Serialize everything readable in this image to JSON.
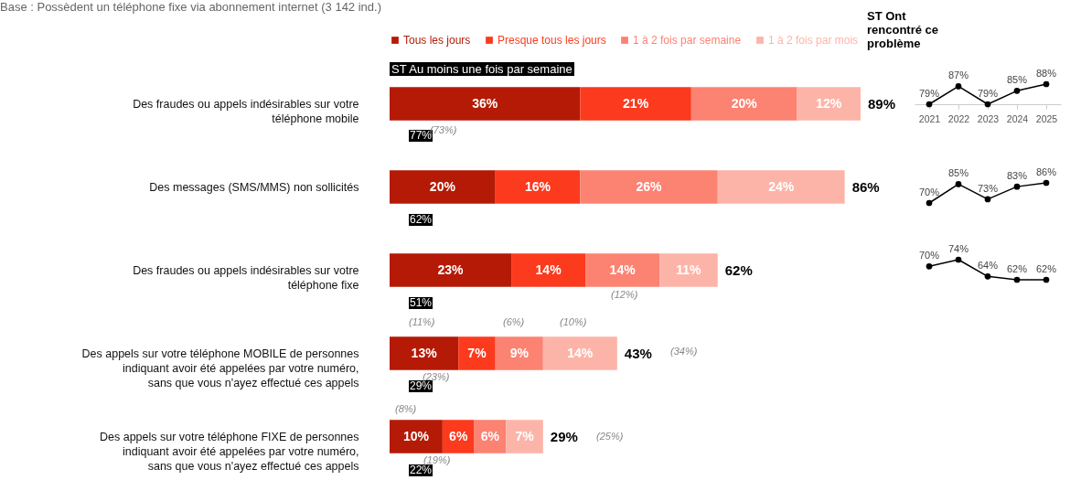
{
  "chart_data": [
    {
      "type": "bar",
      "title": "Base : Possèdent un téléphone fixe via abonnement internet (3 142 ind.)",
      "orientation": "horizontal",
      "stacked": true,
      "legend": "top",
      "categories": [
        "Des fraudes ou appels indésirables sur votre téléphone mobile",
        "Des messages (SMS/MMS) non sollicités",
        "Des fraudes ou appels indésirables sur votre téléphone fixe",
        "Des appels sur votre téléphone MOBILE de personnes indiquant avoir été appelées par votre numéro, sans que vous n'ayez effectué ces appels",
        "Des appels sur votre téléphone FIXE de personnes indiquant avoir été appelées par votre numéro, sans que vous n'ayez effectué ces appels"
      ],
      "series": [
        {
          "name": "Tous les jours",
          "color": "#b51a06",
          "values": [
            36,
            20,
            23,
            13,
            10
          ],
          "value_labels": [
            "36%",
            "20%",
            "23%",
            "13%",
            "10%"
          ]
        },
        {
          "name": "Presque tous les jours",
          "color": "#fb3a1e",
          "values": [
            21,
            16,
            14,
            7,
            6
          ],
          "value_labels": [
            "21%",
            "16%",
            "14%",
            "7%",
            "6%"
          ]
        },
        {
          "name": "1 à 2 fois par semaine",
          "color": "#fc8272",
          "values": [
            20,
            26,
            14,
            9,
            6
          ],
          "value_labels": [
            "20%",
            "26%",
            "14%",
            "9%",
            "6%"
          ]
        },
        {
          "name": "1 à 2 fois par mois",
          "color": "#fdb4a8",
          "values": [
            12,
            24,
            11,
            14,
            7
          ],
          "value_labels": [
            "12%",
            "24%",
            "11%",
            "14%",
            "7%"
          ]
        }
      ],
      "totals": [
        "89%",
        "86%",
        "62%",
        "43%",
        "29%"
      ],
      "annotations": [
        "ST Au moins une fois par semaine",
        "ST Ont rencontré ce problème",
        "77%",
        "(73%)",
        "62%",
        "51%",
        "(12%)",
        "29%",
        "(23%)",
        "(11%)",
        "(6%)",
        "(10%)",
        "(34%)",
        "22%",
        "(19%)",
        "(8%)",
        "(25%)"
      ]
    },
    {
      "type": "line",
      "categories": [
        "2021",
        "2022",
        "2023",
        "2024",
        "2025"
      ],
      "tick_labels": "x",
      "marker": "circle",
      "series": [
        {
          "color": "#000000",
          "values": [
            79,
            87,
            79,
            85,
            88
          ],
          "value_labels": [
            "79%",
            "87%",
            "79%",
            "85%",
            "88%"
          ]
        }
      ]
    },
    {
      "type": "line",
      "categories": [
        null,
        null,
        null,
        null,
        null
      ],
      "tick_labels": false,
      "marker": "circle",
      "series": [
        {
          "color": "#000000",
          "values": [
            70,
            85,
            73,
            83,
            86
          ],
          "value_labels": [
            "70%",
            "85%",
            "73%",
            "83%",
            "86%"
          ]
        }
      ]
    },
    {
      "type": "line",
      "categories": [
        null,
        null,
        null,
        null,
        null
      ],
      "tick_labels": false,
      "marker": "circle",
      "series": [
        {
          "color": "#000000",
          "values": [
            70,
            74,
            64,
            62,
            62
          ],
          "value_labels": [
            "70%",
            "74%",
            "64%",
            "62%",
            "62%"
          ]
        }
      ]
    }
  ]
}
